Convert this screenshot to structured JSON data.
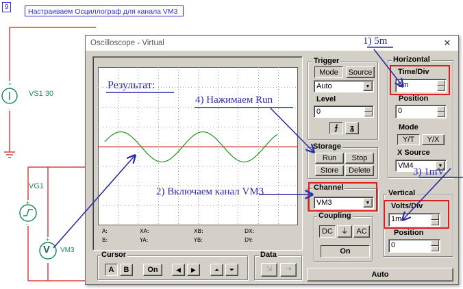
{
  "schematic": {
    "page_number": "9",
    "title": "Настраиваем Осциллограф для канала VM3",
    "vs1_label": "VS1 30",
    "vg1_label": "VG1",
    "vm3_label": "VM3",
    "meter_letter": "V",
    "plus": "+",
    "minus": "-"
  },
  "window": {
    "title": "Oscilloscope - Virtual",
    "close_glyph": "✕"
  },
  "screen": {
    "readout": {
      "a": "A:",
      "b": "B:",
      "xa": "XA:",
      "ya": "YA:",
      "xb": "XB:",
      "yb": "YB:",
      "dx": "DX:",
      "dy": "DY:"
    },
    "colors": {
      "trace": "#1f8f1f",
      "cursor_line": "#c81e1e",
      "grid": "#9a9a9a"
    }
  },
  "cursor": {
    "title": "Cursor",
    "a": "A",
    "b": "B",
    "on": "On"
  },
  "data": {
    "title": "Data"
  },
  "trigger": {
    "title": "Trigger",
    "mode": "Mode",
    "source": "Source",
    "mode_value": "Auto",
    "level_label": "Level",
    "level_value": "0"
  },
  "storage": {
    "title": "Storage",
    "run": "Run",
    "stop": "Stop",
    "store": "Store",
    "delete": "Delete"
  },
  "channel": {
    "title": "Channel",
    "value": "VM3"
  },
  "coupling": {
    "title": "Coupling",
    "dc": "DC",
    "ac": "AC",
    "on": "On"
  },
  "horizontal": {
    "title": "Horizontal",
    "time_div_label": "Time/Div",
    "time_div_value": "5m",
    "position_label": "Position",
    "position_value": "0",
    "mode_label": "Mode",
    "yt": "Y/T",
    "yx": "Y/X",
    "xsource_label": "X Source",
    "xsource_value": "VM4"
  },
  "vertical": {
    "title": "Vertical",
    "volts_div_label": "Volts/Div",
    "volts_div_value": "1m",
    "position_label": "Position",
    "position_value": "0"
  },
  "auto_button": "Auto",
  "annotations": {
    "result": "Результат:",
    "step1": "1) 5m",
    "step2": "2)  Включаем канал VM3",
    "step3": "3) 1mV",
    "step4": "4) Нажимаем Run",
    "color": "#2a2aa8",
    "highlight": "#d82020"
  }
}
